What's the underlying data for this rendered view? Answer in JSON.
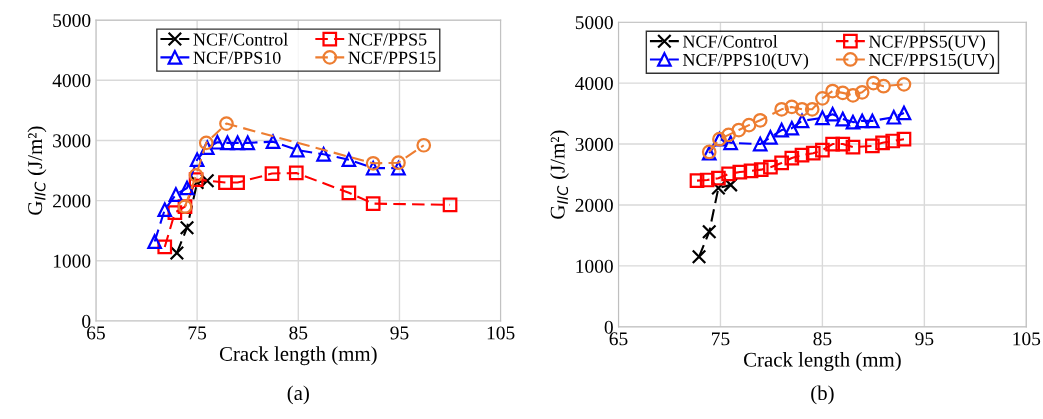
{
  "chart_data": [
    {
      "type": "line",
      "xlabel": "Crack length (mm)",
      "ylabel": "G$_{IIC}$ (J/m²)",
      "xlim": [
        65,
        105
      ],
      "xticks": [
        65,
        75,
        85,
        95,
        105
      ],
      "ylim": [
        0,
        5000
      ],
      "yticks": [
        0,
        1000,
        2000,
        3000,
        4000,
        5000
      ],
      "grid": true,
      "legend": "top",
      "line_style": "dashed",
      "annotations": [
        "(a)"
      ],
      "series": [
        {
          "name": "NCF/Control",
          "color": "#000000",
          "marker": "cross",
          "x": [
            73,
            74,
            75,
            76
          ],
          "values": [
            1130,
            1550,
            2300,
            2330
          ]
        },
        {
          "name": "NCF/PPS5",
          "color": "#ff0000",
          "marker": "square",
          "x": [
            71.8,
            72.8,
            73.8,
            74.9,
            77.8,
            79,
            82.4,
            84.8,
            90,
            92.4,
            100
          ],
          "values": [
            1230,
            1800,
            1900,
            2350,
            2300,
            2300,
            2450,
            2460,
            2130,
            1950,
            1930
          ]
        },
        {
          "name": "NCF/PPS10",
          "color": "#0000ff",
          "marker": "triangle",
          "x": [
            70.8,
            71.8,
            72.9,
            74,
            75,
            76,
            77,
            78,
            79,
            80,
            82.5,
            84.9,
            87.5,
            90,
            92.4,
            94.9
          ],
          "values": [
            1320,
            1850,
            2100,
            2210,
            2680,
            2880,
            2970,
            2960,
            2960,
            2960,
            2980,
            2840,
            2770,
            2680,
            2540,
            2540
          ]
        },
        {
          "name": "NCF/PPS15",
          "color": "#ed7d31",
          "marker": "circle",
          "x": [
            73.8,
            74.9,
            75.9,
            77.9,
            92.4,
            94.9,
            97.4
          ],
          "values": [
            1900,
            2420,
            2960,
            3280,
            2620,
            2630,
            2920
          ]
        }
      ]
    },
    {
      "type": "line",
      "xlabel": "Crack length (mm)",
      "ylabel": "G$_{IIC}$ (J/m²)",
      "xlim": [
        65,
        105
      ],
      "xticks": [
        65,
        75,
        85,
        95,
        105
      ],
      "ylim": [
        0,
        5000
      ],
      "yticks": [
        0,
        1000,
        2000,
        3000,
        4000,
        5000
      ],
      "grid": true,
      "legend": "top",
      "line_style": "dashed",
      "annotations": [
        "(b)"
      ],
      "series": [
        {
          "name": "NCF/Control",
          "color": "#000000",
          "marker": "cross",
          "x": [
            72.9,
            73.9,
            74.8,
            76
          ],
          "values": [
            1150,
            1560,
            2280,
            2330
          ]
        },
        {
          "name": "NCF/PPS5(UV)",
          "color": "#ff0000",
          "marker": "square",
          "x": [
            72.7,
            73.7,
            74.8,
            75.8,
            76.9,
            78,
            79,
            79.9,
            81,
            82,
            83,
            84.1,
            85,
            86,
            87,
            88,
            89.9,
            90.9,
            91.9,
            93
          ],
          "values": [
            2400,
            2410,
            2440,
            2510,
            2540,
            2560,
            2580,
            2620,
            2690,
            2770,
            2820,
            2850,
            2900,
            3000,
            3000,
            2950,
            2970,
            3020,
            3050,
            3080
          ]
        },
        {
          "name": "NCF/PPS10(UV)",
          "color": "#0000ff",
          "marker": "triangle",
          "x": [
            73.9,
            74.9,
            76,
            78.9,
            79.9,
            81,
            82,
            83,
            85,
            86,
            87,
            88,
            88.9,
            89.9,
            92,
            93
          ],
          "values": [
            2850,
            3080,
            3020,
            3000,
            3110,
            3230,
            3260,
            3380,
            3430,
            3490,
            3410,
            3360,
            3380,
            3380,
            3440,
            3510
          ]
        },
        {
          "name": "NCF/PPS15(UV)",
          "color": "#ed7d31",
          "marker": "circle",
          "x": [
            73.9,
            74.9,
            75.8,
            76.8,
            77.8,
            78.9,
            81,
            82,
            83,
            84,
            85,
            86,
            87,
            88,
            88.9,
            90,
            91,
            93
          ],
          "values": [
            2870,
            3080,
            3150,
            3230,
            3310,
            3390,
            3570,
            3610,
            3570,
            3570,
            3750,
            3870,
            3840,
            3800,
            3850,
            4000,
            3950,
            3980
          ]
        }
      ]
    }
  ]
}
